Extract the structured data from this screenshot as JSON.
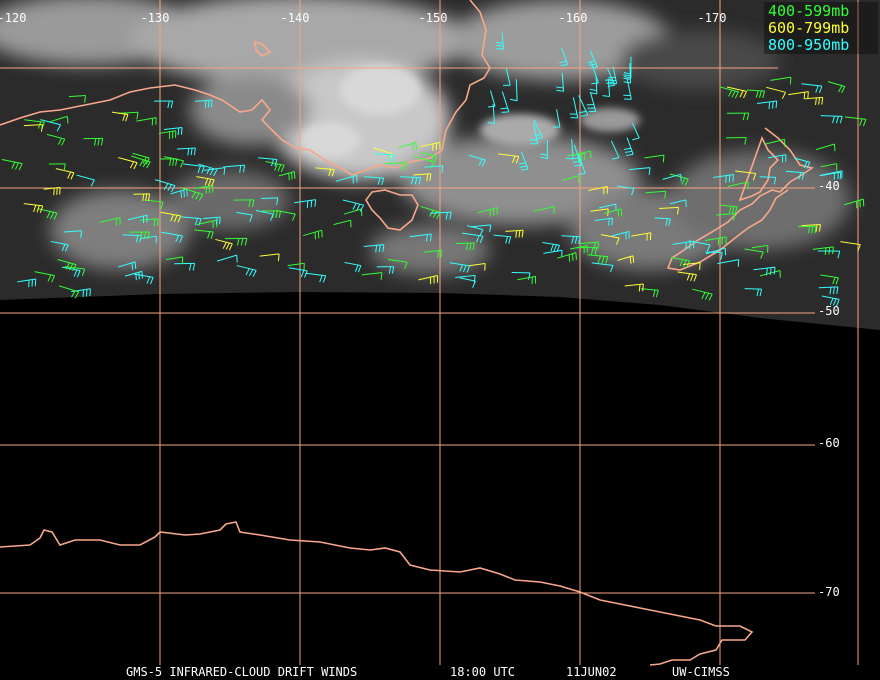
{
  "map": {
    "longitude_labels": [
      "-120",
      "-130",
      "-140",
      "-150",
      "-160",
      "-170"
    ],
    "latitude_labels": [
      "-40",
      "-50",
      "-60",
      "-70"
    ],
    "legend": [
      {
        "label": "400-599mb",
        "color": "#33ff33"
      },
      {
        "label": "600-799mb",
        "color": "#ffff33"
      },
      {
        "label": "800-950mb",
        "color": "#33ffff"
      }
    ],
    "footer": [
      "GMS-5 INFRARED-CLOUD DRIFT WINDS",
      "18:00 UTC",
      "11JUN02",
      "UW-CIMSS"
    ]
  }
}
